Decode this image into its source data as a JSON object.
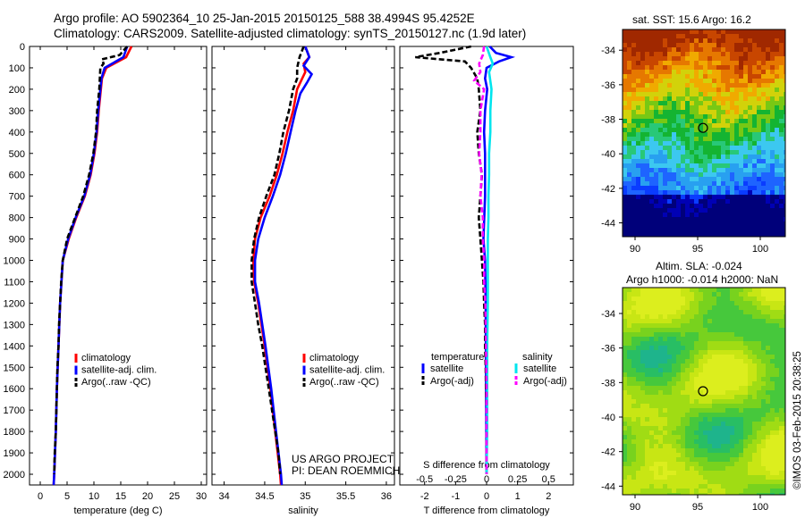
{
  "header": {
    "line1": "Argo profile: AO 5902364_10 25-Jan-2015 20150125_588 38.4994S 95.4252E",
    "line2": "Climatology: CARS2009. Satellite-adjusted climatology: synTS_20150127.nc (1.9d later)"
  },
  "map_titles": {
    "sst": "sat. SST: 15.6 Argo: 16.2",
    "sla1": "Altim. SLA: -0.024",
    "sla2": "Argo h1000: -0.014 h2000: NaN"
  },
  "credit": {
    "line1": "US ARGO PROJECT",
    "line2": "PI: DEAN ROEMMICH",
    "stamp": "©IMOS 03-Feb-2015 20:38:25"
  },
  "colors": {
    "climatology": "#ff0000",
    "satellite": "#0000ff",
    "argo": "#000000",
    "sal_satellite": "#00e5ee",
    "sal_argo": "#ff00ff"
  },
  "chart_data": [
    {
      "type": "line",
      "xlabel": "temperature (deg C)",
      "xlim": [
        -2,
        31
      ],
      "xticks": [
        0,
        5,
        10,
        15,
        20,
        25,
        30
      ],
      "ylim": [
        2050,
        0
      ],
      "yticks": [
        0,
        100,
        200,
        300,
        400,
        500,
        600,
        700,
        800,
        900,
        1000,
        1100,
        1200,
        1300,
        1400,
        1500,
        1600,
        1700,
        1800,
        1900,
        2000
      ],
      "legend": [
        "climatology",
        "satellite-adj. clim.",
        "Argo(..raw -QC)"
      ],
      "legend_position": "lower-right",
      "series": [
        {
          "name": "climatology",
          "color": "#ff0000",
          "depth": [
            0,
            50,
            100,
            150,
            200,
            300,
            400,
            500,
            600,
            700,
            800,
            900,
            1000,
            1200,
            1400,
            1600,
            1800,
            2000,
            2050
          ],
          "values": [
            17.0,
            16.0,
            12.3,
            11.5,
            11.3,
            10.9,
            10.6,
            10.1,
            9.4,
            8.3,
            6.7,
            5.3,
            4.2,
            3.7,
            3.4,
            3.1,
            2.9,
            2.6,
            2.5
          ]
        },
        {
          "name": "satellite-adj. clim.",
          "color": "#0000ff",
          "depth": [
            0,
            50,
            100,
            150,
            200,
            300,
            400,
            500,
            600,
            700,
            800,
            900,
            1000,
            1200,
            1400,
            1600,
            1800,
            2000,
            2050
          ],
          "values": [
            16.2,
            15.5,
            12.0,
            11.4,
            11.2,
            10.8,
            10.5,
            10.0,
            9.3,
            8.2,
            6.6,
            5.2,
            4.2,
            3.7,
            3.4,
            3.1,
            2.9,
            2.6,
            2.5
          ]
        },
        {
          "name": "Argo(..raw -QC)",
          "color": "#000000",
          "depth": [
            0,
            40,
            60,
            80,
            100,
            150,
            200,
            300,
            400,
            500,
            600,
            700,
            800,
            900,
            1000,
            1100,
            1200,
            1300,
            1400,
            1500,
            1600,
            1700,
            1800,
            1900,
            2000
          ],
          "values": [
            16.2,
            14.8,
            11.5,
            11.8,
            11.2,
            11.1,
            11.0,
            10.6,
            10.4,
            9.9,
            9.1,
            8.0,
            6.5,
            5.0,
            4.2,
            3.9,
            3.7,
            3.5,
            3.4,
            3.2,
            3.1,
            3.0,
            2.9,
            2.7,
            2.6
          ]
        }
      ]
    },
    {
      "type": "line",
      "xlabel": "salinity",
      "xlim": [
        33.85,
        36.1
      ],
      "xticks": [
        34,
        34.5,
        35,
        35.5,
        36
      ],
      "ylim": [
        2050,
        0
      ],
      "legend": [
        "climatology",
        "satellite-adj. clim.",
        "Argo(..raw -QC)"
      ],
      "legend_position": "lower-right",
      "series": [
        {
          "name": "climatology",
          "color": "#ff0000",
          "depth": [
            0,
            50,
            80,
            120,
            160,
            200,
            300,
            400,
            500,
            600,
            700,
            800,
            900,
            1000,
            1100,
            1200,
            1400,
            1600,
            1800,
            2000,
            2050
          ],
          "values": [
            35.0,
            35.05,
            34.98,
            35.0,
            34.95,
            34.9,
            34.85,
            34.78,
            34.72,
            34.65,
            34.56,
            34.45,
            34.38,
            34.36,
            34.37,
            34.42,
            34.5,
            34.57,
            34.63,
            34.69,
            34.7
          ]
        },
        {
          "name": "satellite-adj. clim.",
          "color": "#0000ff",
          "depth": [
            0,
            50,
            90,
            130,
            170,
            220,
            300,
            400,
            500,
            600,
            700,
            800,
            900,
            1000,
            1100,
            1200,
            1400,
            1600,
            1800,
            2000,
            2050
          ],
          "values": [
            35.0,
            35.05,
            34.98,
            35.08,
            35.02,
            34.94,
            34.88,
            34.82,
            34.76,
            34.69,
            34.6,
            34.5,
            34.42,
            34.38,
            34.38,
            34.43,
            34.51,
            34.58,
            34.64,
            34.7,
            34.71
          ]
        },
        {
          "name": "Argo(..raw -QC)",
          "color": "#000000",
          "depth": [
            0,
            50,
            100,
            150,
            200,
            300,
            400,
            500,
            600,
            700,
            800,
            900,
            1000,
            1100,
            1200,
            1300,
            1400,
            1500,
            1600,
            1700,
            1800,
            1900,
            2000
          ],
          "values": [
            34.98,
            34.93,
            34.9,
            34.9,
            34.85,
            34.8,
            34.73,
            34.68,
            34.62,
            34.52,
            34.43,
            34.37,
            34.34,
            34.34,
            34.38,
            34.42,
            34.47,
            34.51,
            34.55,
            34.59,
            34.63,
            34.67,
            34.69
          ]
        }
      ]
    },
    {
      "type": "line",
      "xlabel": "T difference from climatology",
      "x2label": "S difference from climatology",
      "xlim": [
        -2.8,
        2.8
      ],
      "xticks": [
        -2,
        -1,
        0,
        1,
        2
      ],
      "x2ticks": [
        -0.5,
        -0.25,
        0,
        0.25,
        0.5
      ],
      "ylim": [
        2050,
        0
      ],
      "legend_headers": [
        "temperature",
        "salinity"
      ],
      "legend": [
        "satellite",
        "Argo(-adj)",
        "satellite",
        "Argo(-adj)"
      ],
      "legend_position": "lower-center",
      "series": [
        {
          "name": "temperature satellite",
          "color": "#0000ff",
          "depth": [
            0,
            30,
            50,
            70,
            100,
            150,
            200,
            300,
            400,
            500,
            700,
            900,
            1000,
            1200,
            1500,
            1800,
            2000
          ],
          "values": [
            0.1,
            0.3,
            0.8,
            0.4,
            0.0,
            -0.05,
            0.02,
            -0.05,
            -0.08,
            -0.05,
            -0.05,
            -0.1,
            -0.05,
            -0.03,
            -0.02,
            -0.01,
            0.0
          ]
        },
        {
          "name": "temperature Argo(-adj)",
          "color": "#000000",
          "depth": [
            0,
            30,
            50,
            70,
            100,
            150,
            200,
            300,
            400,
            500,
            600,
            700,
            800,
            900,
            1000,
            1100,
            1200,
            1300,
            1400,
            1500,
            1600,
            1700,
            1800,
            1900,
            2000
          ],
          "values": [
            -0.5,
            -1.5,
            -2.3,
            -0.7,
            -0.5,
            -0.3,
            -0.25,
            -0.2,
            -0.3,
            -0.25,
            -0.15,
            -0.2,
            -0.25,
            -0.2,
            -0.15,
            -0.1,
            -0.08,
            -0.05,
            -0.05,
            -0.03,
            -0.02,
            0.0,
            0.0,
            0.0,
            0.0
          ]
        },
        {
          "name": "salinity satellite",
          "color": "#00e5ee",
          "depth": [
            0,
            50,
            80,
            120,
            200,
            300,
            400,
            500,
            600,
            700,
            800,
            900,
            1000,
            1200,
            1400,
            1600,
            1800,
            2000
          ],
          "values": [
            0.0,
            0.03,
            0.05,
            0.02,
            0.04,
            0.03,
            0.03,
            0.02,
            0.02,
            0.015,
            0.015,
            0.01,
            0.01,
            0.01,
            0.005,
            0.005,
            0.005,
            0.0
          ]
        },
        {
          "name": "salinity Argo(-adj)",
          "color": "#ff00ff",
          "depth": [
            0,
            40,
            80,
            120,
            160,
            200,
            300,
            400,
            500,
            600,
            700,
            800,
            900,
            1000,
            1100,
            1200,
            1400,
            1600,
            1800,
            2000
          ],
          "values": [
            -0.02,
            -0.03,
            -0.06,
            -0.05,
            -0.1,
            -0.02,
            -0.05,
            -0.05,
            -0.06,
            -0.04,
            -0.05,
            -0.03,
            -0.03,
            -0.02,
            -0.02,
            -0.01,
            -0.005,
            0.0,
            0.0,
            0.0
          ]
        }
      ]
    },
    {
      "type": "heatmap",
      "title": "sat. SST: 15.6 Argo: 16.2",
      "xlim": [
        89,
        102
      ],
      "xticks": [
        90,
        95,
        100
      ],
      "ylim": [
        -44.8,
        -32.8
      ],
      "yticks": [
        -34,
        -36,
        -38,
        -40,
        -42,
        -44
      ],
      "marker": {
        "lon": 95.4252,
        "lat": -38.4994
      }
    },
    {
      "type": "heatmap",
      "title": "Altim. SLA: -0.024",
      "xlim": [
        89,
        102
      ],
      "xticks": [
        90,
        95,
        100
      ],
      "ylim": [
        -44.5,
        -32.5
      ],
      "yticks": [
        -34,
        -36,
        -38,
        -40,
        -42,
        -44
      ],
      "marker": {
        "lon": 95.4252,
        "lat": -38.4994
      }
    }
  ]
}
